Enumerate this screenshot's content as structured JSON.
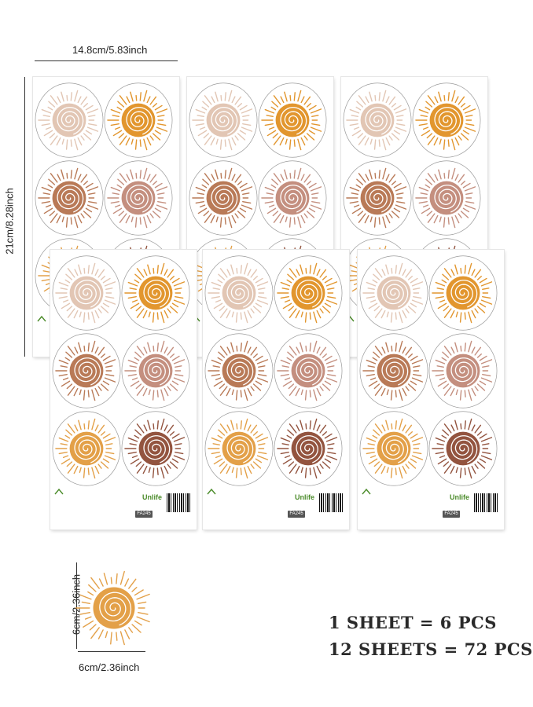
{
  "sheet_width_label": "14.8cm/5.83inch",
  "sheet_height_label": "21cm/8.28inch",
  "sticker_width_label": "6cm/2.36inch",
  "sticker_height_label": "6cm/2.36inch",
  "summary": {
    "line1": "1 SHEET = 6 PCS",
    "line2": "12 SHEETS = 72 PCS"
  },
  "sheet_footer": {
    "brand": "Unlife",
    "code": "FA245"
  },
  "colors": {
    "blush": "#e2c6b4",
    "amber": "#e2962e",
    "terracotta": "#b97a57",
    "rose": "#c48f7f",
    "golden": "#e3a048",
    "brown": "#93543f",
    "brand_green": "#4c8c2b"
  },
  "sticker_order": [
    "blush",
    "amber",
    "terracotta",
    "rose",
    "golden",
    "brown"
  ]
}
